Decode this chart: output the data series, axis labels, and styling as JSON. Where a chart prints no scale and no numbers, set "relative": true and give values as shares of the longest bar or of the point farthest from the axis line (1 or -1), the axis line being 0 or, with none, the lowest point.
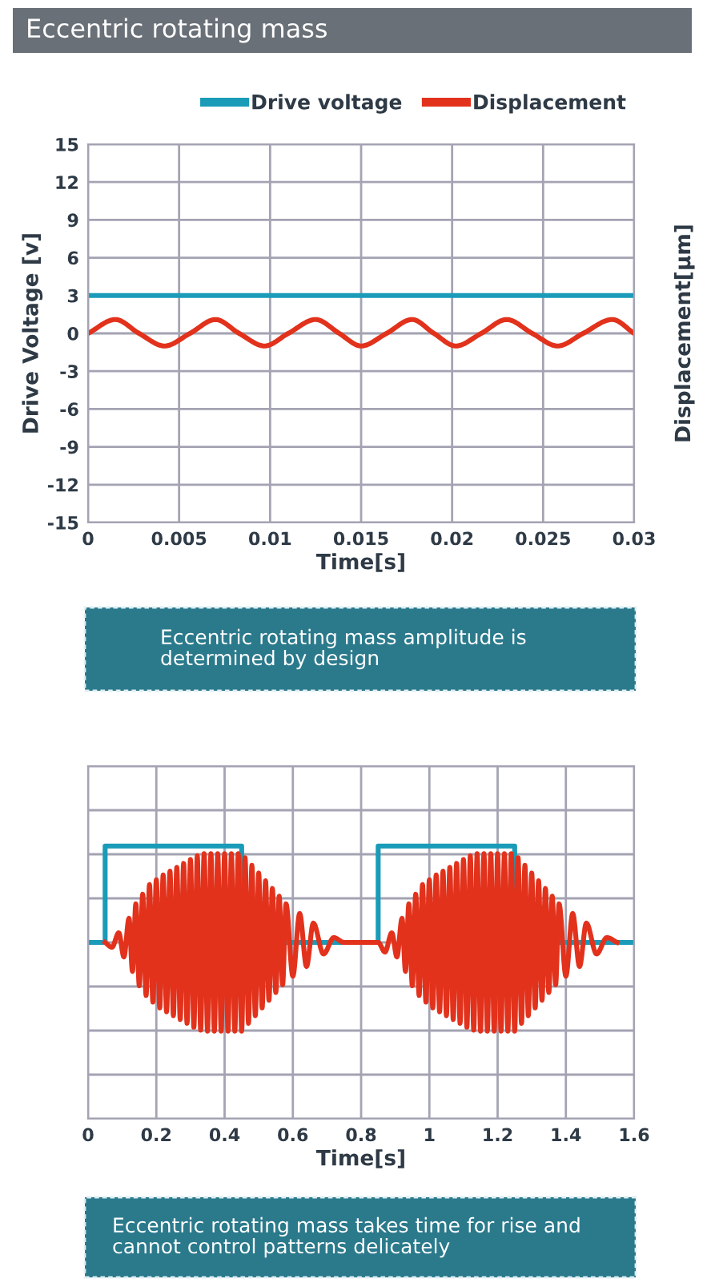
{
  "chart_data": [
    {
      "type": "line",
      "title": "Eccentric rotating mass",
      "xlabel": "Time[s]",
      "ylabel": "Drive Voltage [v]",
      "y2label": "Displacement[μm]",
      "annotations": [
        "Eccentric rotating mass amplitude is\ndetermined by design"
      ],
      "x": [
        0,
        0.0015,
        0.0028,
        0.0042,
        0.0056,
        0.007,
        0.0083,
        0.0097,
        0.011,
        0.0125,
        0.0138,
        0.015,
        0.0164,
        0.0178,
        0.019,
        0.0202,
        0.0216,
        0.023,
        0.0244,
        0.0258,
        0.0272,
        0.0288,
        0.03
      ],
      "series": [
        {
          "name": "Drive voltage",
          "color": "#1a9bb8",
          "x": [
            0,
            0.03
          ],
          "values": [
            3,
            3
          ]
        },
        {
          "name": "Displacement",
          "color": "#e2321c",
          "values": [
            0,
            1.1,
            0,
            -1,
            0,
            1.1,
            0,
            -1,
            0,
            1.1,
            0,
            -1,
            0,
            1.1,
            0,
            -1,
            0,
            1.1,
            0,
            -1,
            0,
            1.1,
            0
          ]
        }
      ],
      "xlim": [
        0,
        0.03
      ],
      "xticks": [
        0,
        0.005,
        0.01,
        0.015,
        0.02,
        0.025,
        0.03
      ],
      "ylim": [
        -15,
        15
      ],
      "yticks": [
        -15,
        -12,
        -9,
        -6,
        -3,
        0,
        3,
        6,
        9,
        12,
        15
      ],
      "grid": true,
      "legend": "top right"
    },
    {
      "type": "line",
      "xlabel": "Time[s]",
      "relative": true,
      "tick_labels": "x",
      "annotations": [
        "Eccentric rotating mass takes time for rise and\ncannot control patterns delicately"
      ],
      "series": [
        {
          "type": "step",
          "color": "#1a9bb8",
          "x": [
            0,
            0.05,
            0.45,
            0.85,
            1.25,
            1.6
          ],
          "values": [
            0,
            1,
            0,
            1,
            0,
            0
          ]
        },
        {
          "color": "#e2321c",
          "x": [
            0.05,
            0.07,
            0.09,
            0.105,
            0.12,
            0.13,
            0.14,
            0.15,
            0.16,
            0.17,
            0.18,
            0.19,
            0.2,
            0.21,
            0.22,
            0.23,
            0.24,
            0.25,
            0.26,
            0.27,
            0.28,
            0.29,
            0.3,
            0.31,
            0.32,
            0.33,
            0.34,
            0.35,
            0.36,
            0.37,
            0.38,
            0.39,
            0.4,
            0.41,
            0.42,
            0.43,
            0.44,
            0.45,
            0.46,
            0.47,
            0.48,
            0.49,
            0.5,
            0.51,
            0.52,
            0.53,
            0.54,
            0.55,
            0.56,
            0.57,
            0.58,
            0.6,
            0.62,
            0.64,
            0.66,
            0.69,
            0.72,
            0.75,
            0.85,
            0.87,
            0.89,
            0.905,
            0.92,
            0.93,
            0.94,
            0.95,
            0.96,
            0.97,
            0.98,
            0.99,
            1.0,
            1.01,
            1.02,
            1.03,
            1.04,
            1.05,
            1.06,
            1.07,
            1.08,
            1.09,
            1.1,
            1.11,
            1.12,
            1.13,
            1.14,
            1.15,
            1.16,
            1.17,
            1.18,
            1.19,
            1.2,
            1.21,
            1.22,
            1.23,
            1.24,
            1.25,
            1.26,
            1.27,
            1.28,
            1.29,
            1.3,
            1.31,
            1.32,
            1.33,
            1.34,
            1.35,
            1.36,
            1.37,
            1.38,
            1.4,
            1.42,
            1.44,
            1.46,
            1.49,
            1.52,
            1.55
          ],
          "values": [
            0,
            -0.05,
            0.1,
            -0.15,
            0.25,
            -0.3,
            0.4,
            -0.45,
            0.5,
            -0.55,
            0.6,
            -0.62,
            0.65,
            -0.68,
            0.7,
            -0.72,
            0.74,
            -0.76,
            0.78,
            -0.8,
            0.82,
            -0.84,
            0.86,
            -0.88,
            0.9,
            -0.91,
            0.92,
            -0.92,
            0.92,
            -0.92,
            0.92,
            -0.92,
            0.92,
            -0.92,
            0.92,
            -0.92,
            0.92,
            -0.92,
            0.88,
            -0.84,
            0.8,
            -0.76,
            0.72,
            -0.68,
            0.64,
            -0.6,
            0.56,
            -0.52,
            0.48,
            -0.44,
            0.4,
            -0.35,
            0.3,
            -0.25,
            0.2,
            -0.12,
            0.05,
            0,
            0,
            -0.1,
            0.1,
            -0.15,
            0.25,
            -0.3,
            0.4,
            -0.45,
            0.5,
            -0.55,
            0.6,
            -0.62,
            0.65,
            -0.68,
            0.7,
            -0.72,
            0.74,
            -0.76,
            0.78,
            -0.8,
            0.82,
            -0.84,
            0.86,
            -0.88,
            0.9,
            -0.91,
            0.92,
            -0.92,
            0.92,
            -0.92,
            0.92,
            -0.92,
            0.92,
            -0.92,
            0.92,
            -0.92,
            0.92,
            -0.92,
            0.88,
            -0.84,
            0.8,
            -0.76,
            0.72,
            -0.68,
            0.64,
            -0.6,
            0.56,
            -0.52,
            0.48,
            -0.44,
            0.4,
            -0.35,
            0.3,
            -0.25,
            0.2,
            -0.12,
            0.05,
            0
          ]
        }
      ],
      "xlim": [
        0,
        1.6
      ],
      "xticks": [
        0,
        0.2,
        0.4,
        0.6,
        0.8,
        1,
        1.2,
        1.4,
        1.6
      ],
      "grid": true
    }
  ]
}
